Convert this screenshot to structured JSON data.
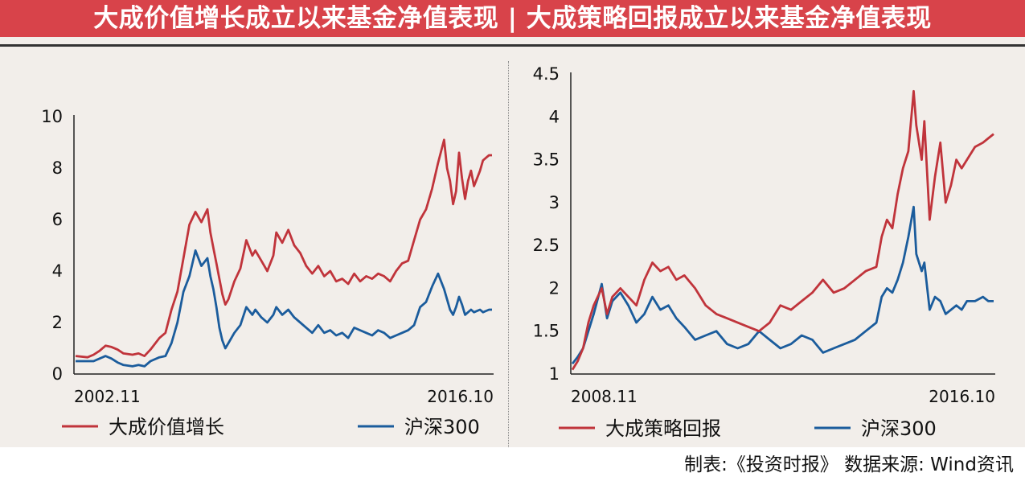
{
  "header": {
    "title": "大成价值增长成立以来基金净值表现 | 大成策略回报成立以来基金净值表现"
  },
  "footer": {
    "credit": "制表:《投资时报》 数据来源: Wind资讯"
  },
  "colors": {
    "fund": "#c0343b",
    "index": "#1b5c9c",
    "title_bg": "#d8434a"
  },
  "chart_data": [
    {
      "type": "line",
      "ylim": [
        0,
        10
      ],
      "yticks": [
        "0",
        "2",
        "4",
        "6",
        "8",
        "10"
      ],
      "x_start_label": "2002.11",
      "x_end_label": "2016.10",
      "legend_position": "bottom",
      "x": [
        2002.9,
        2003.3,
        2003.5,
        2003.7,
        2003.9,
        2004.1,
        2004.3,
        2004.5,
        2004.8,
        2005.0,
        2005.2,
        2005.4,
        2005.7,
        2005.9,
        2006.1,
        2006.3,
        2006.5,
        2006.7,
        2006.9,
        2007.1,
        2007.3,
        2007.4,
        2007.5,
        2007.6,
        2007.7,
        2007.8,
        2007.9,
        2008.0,
        2008.2,
        2008.4,
        2008.6,
        2008.8,
        2008.9,
        2009.1,
        2009.3,
        2009.5,
        2009.6,
        2009.8,
        2010.0,
        2010.2,
        2010.4,
        2010.6,
        2010.8,
        2011.0,
        2011.2,
        2011.4,
        2011.6,
        2011.8,
        2012.0,
        2012.2,
        2012.4,
        2012.6,
        2012.8,
        2013.0,
        2013.2,
        2013.4,
        2013.6,
        2013.8,
        2014.0,
        2014.2,
        2014.4,
        2014.6,
        2014.8,
        2015.0,
        2015.2,
        2015.3,
        2015.4,
        2015.5,
        2015.6,
        2015.7,
        2015.8,
        2015.9,
        2016.0,
        2016.1,
        2016.2,
        2016.3,
        2016.4,
        2016.5,
        2016.6,
        2016.7,
        2016.8
      ],
      "series": [
        {
          "name": "大成价值增长",
          "values": [
            0.7,
            0.65,
            0.75,
            0.9,
            1.1,
            1.05,
            0.95,
            0.8,
            0.75,
            0.8,
            0.7,
            0.95,
            1.4,
            1.6,
            2.5,
            3.2,
            4.5,
            5.8,
            6.3,
            5.9,
            6.4,
            5.5,
            4.9,
            4.3,
            3.7,
            3.1,
            2.7,
            2.9,
            3.6,
            4.1,
            5.2,
            4.6,
            4.8,
            4.4,
            4.0,
            4.6,
            5.5,
            5.1,
            5.6,
            5.0,
            4.7,
            4.2,
            3.9,
            4.2,
            3.8,
            4.0,
            3.6,
            3.7,
            3.5,
            3.9,
            3.6,
            3.8,
            3.7,
            3.9,
            3.8,
            3.6,
            4.0,
            4.3,
            4.4,
            5.2,
            6.0,
            6.4,
            7.2,
            8.2,
            9.1,
            8.0,
            7.5,
            6.6,
            7.1,
            8.6,
            7.6,
            6.8,
            7.5,
            7.9,
            7.3,
            7.6,
            7.9,
            8.3,
            8.4,
            8.5,
            8.5
          ]
        },
        {
          "name": "沪深300",
          "values": [
            0.5,
            0.5,
            0.5,
            0.6,
            0.7,
            0.6,
            0.45,
            0.35,
            0.3,
            0.35,
            0.3,
            0.5,
            0.65,
            0.7,
            1.2,
            2.0,
            3.2,
            3.8,
            4.8,
            4.2,
            4.5,
            3.8,
            3.3,
            2.6,
            1.8,
            1.3,
            1.0,
            1.2,
            1.6,
            1.9,
            2.6,
            2.3,
            2.5,
            2.2,
            2.0,
            2.3,
            2.6,
            2.3,
            2.5,
            2.2,
            2.0,
            1.8,
            1.6,
            1.9,
            1.6,
            1.7,
            1.5,
            1.6,
            1.4,
            1.8,
            1.7,
            1.6,
            1.5,
            1.7,
            1.6,
            1.4,
            1.5,
            1.6,
            1.7,
            1.9,
            2.6,
            2.8,
            3.4,
            3.9,
            3.3,
            2.9,
            2.5,
            2.3,
            2.6,
            3.0,
            2.7,
            2.3,
            2.4,
            2.5,
            2.4,
            2.45,
            2.5,
            2.4,
            2.45,
            2.5,
            2.5
          ]
        }
      ]
    },
    {
      "type": "line",
      "ylim": [
        1,
        4.5
      ],
      "yticks": [
        "1",
        "1.5",
        "2",
        "2.5",
        "3",
        "3.5",
        "4",
        "4.5"
      ],
      "x_start_label": "2008.11",
      "x_end_label": "2016.10",
      "legend_position": "bottom",
      "x": [
        2008.9,
        2009.0,
        2009.1,
        2009.2,
        2009.3,
        2009.45,
        2009.55,
        2009.65,
        2009.8,
        2009.95,
        2010.1,
        2010.25,
        2010.4,
        2010.55,
        2010.7,
        2010.85,
        2011.0,
        2011.2,
        2011.4,
        2011.6,
        2011.8,
        2012.0,
        2012.2,
        2012.4,
        2012.6,
        2012.8,
        2013.0,
        2013.2,
        2013.4,
        2013.6,
        2013.8,
        2014.0,
        2014.2,
        2014.4,
        2014.6,
        2014.7,
        2014.8,
        2014.9,
        2015.0,
        2015.1,
        2015.2,
        2015.3,
        2015.35,
        2015.45,
        2015.5,
        2015.6,
        2015.7,
        2015.8,
        2015.9,
        2016.0,
        2016.1,
        2016.2,
        2016.3,
        2016.45,
        2016.6,
        2016.7,
        2016.8
      ],
      "series": [
        {
          "name": "大成策略回报",
          "values": [
            1.05,
            1.15,
            1.3,
            1.6,
            1.8,
            2.0,
            1.7,
            1.9,
            2.0,
            1.9,
            1.8,
            2.1,
            2.3,
            2.2,
            2.25,
            2.1,
            2.15,
            2.0,
            1.8,
            1.7,
            1.65,
            1.6,
            1.55,
            1.5,
            1.6,
            1.8,
            1.75,
            1.85,
            1.95,
            2.1,
            1.95,
            2.0,
            2.1,
            2.2,
            2.25,
            2.6,
            2.8,
            2.7,
            3.1,
            3.4,
            3.6,
            4.3,
            3.9,
            3.5,
            3.95,
            2.8,
            3.3,
            3.7,
            3.0,
            3.2,
            3.5,
            3.4,
            3.5,
            3.65,
            3.7,
            3.75,
            3.8
          ]
        },
        {
          "name": "沪深300",
          "values": [
            1.12,
            1.2,
            1.3,
            1.5,
            1.7,
            2.05,
            1.65,
            1.85,
            1.95,
            1.8,
            1.6,
            1.7,
            1.9,
            1.75,
            1.8,
            1.65,
            1.55,
            1.4,
            1.45,
            1.5,
            1.35,
            1.3,
            1.35,
            1.5,
            1.4,
            1.3,
            1.35,
            1.45,
            1.4,
            1.25,
            1.3,
            1.35,
            1.4,
            1.5,
            1.6,
            1.9,
            2.0,
            1.95,
            2.1,
            2.3,
            2.6,
            2.95,
            2.4,
            2.2,
            2.3,
            1.75,
            1.9,
            1.85,
            1.7,
            1.75,
            1.8,
            1.75,
            1.85,
            1.85,
            1.9,
            1.85,
            1.85
          ]
        }
      ]
    }
  ]
}
